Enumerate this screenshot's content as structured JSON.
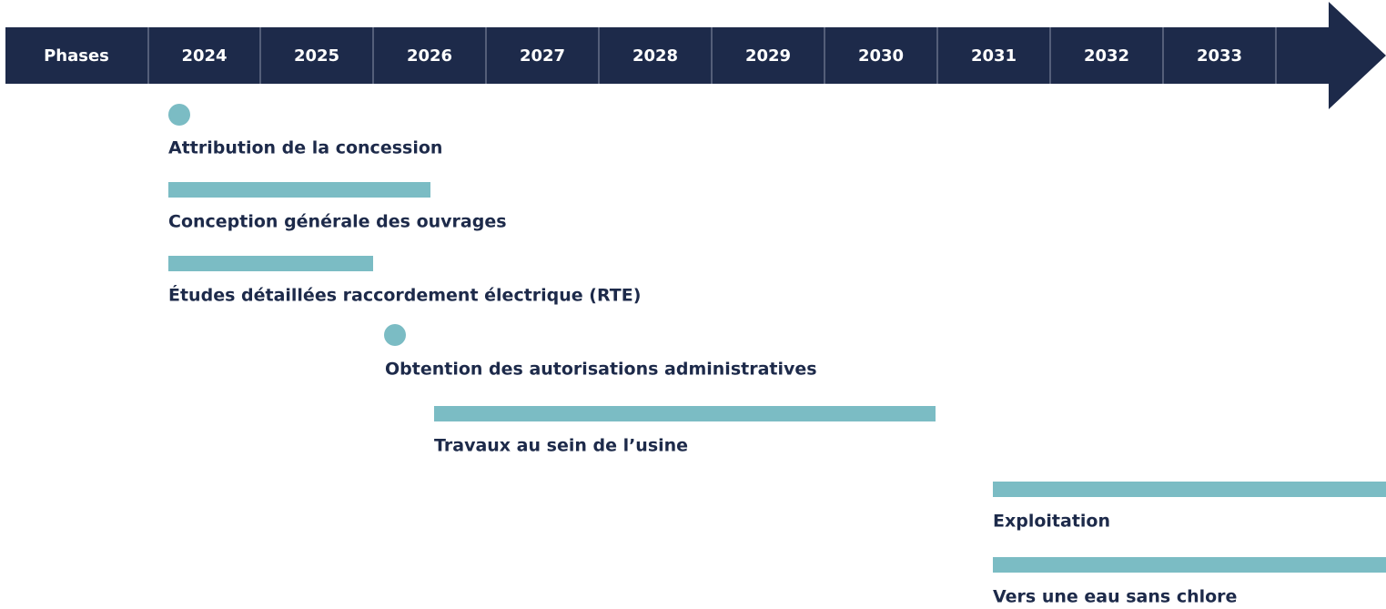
{
  "header": {
    "first": "Phases",
    "years": [
      "2024",
      "2025",
      "2026",
      "2027",
      "2028",
      "2029",
      "2030",
      "2031",
      "2032",
      "2033"
    ]
  },
  "phases": [
    {
      "label": "Attribution de la concession"
    },
    {
      "label": "Conception générale des ouvrages"
    },
    {
      "label": "Études détaillées raccordement électrique (RTE)"
    },
    {
      "label": "Obtention des autorisations administratives"
    },
    {
      "label": "Travaux au sein de l’usine"
    },
    {
      "label": "Exploitation"
    },
    {
      "label": "Vers une eau sans chlore"
    }
  ]
}
